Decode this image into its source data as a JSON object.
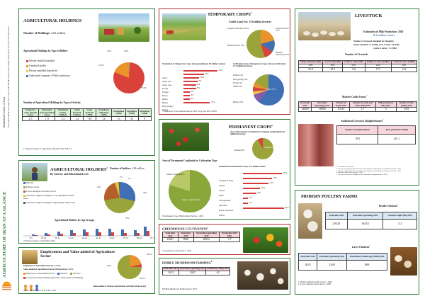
{
  "side": {
    "main_title": "AGRICULTURE OF IRAN AT A GLANCE",
    "org": "Statistical Centre of Iran",
    "note": "Iran's agricultural area ranks first in the whole Middle East and has a large share (about 10%) of Iran's land area"
  },
  "holdings": {
    "title": "AGRICULTURAL HOLDINGS",
    "number_label": "Number of Holdings:",
    "number_value": "4.02 million",
    "type_title": "Agricultural Holdings by Type of Holder",
    "legend": [
      "Private settled household",
      "Unsettled holder",
      "Private unsettled household",
      "Authorized company / Public institution"
    ],
    "pie_labels": [
      "0.2%",
      "0.4%",
      "23.5%",
      "75.9%"
    ],
    "activity_title": "Number of Agricultural Holdings by Type of Activity",
    "activity_headers": [
      "Temporary crops (annual crops)",
      "Permanent crops (perennial crops)",
      "Traditional poultry (million)",
      "Small livestock (million)",
      "Large livestock (1000)",
      "Greenhouse cultivation (1000)",
      "Pisciculture (1000)",
      "Apiculture (1000)",
      "Sericulture (1000)"
    ],
    "activity_values": [
      "2.5",
      "1.9",
      "1.2",
      "1.2",
      "710",
      "14",
      "13",
      "52",
      "9"
    ],
    "source": "1 National Census of Agriculture, 2014 (27 Sep.-8 Nov.)"
  },
  "holders": {
    "title": "AGRICULTURAL HOLDERS",
    "sup": "2",
    "subtitle": "By Literacy and Educational Level",
    "number_label": "Number of holders:",
    "number_value": "4.03 million",
    "legend": [
      "Illiterate",
      "Primary school",
      "Lower and upper secondary school",
      "Associate's degree and higher in non-agricultural related areas",
      "Associate's degree and higher in agricultural related areas"
    ],
    "pie_labels": [
      "5%",
      "1%",
      "34%",
      "35%",
      "25%"
    ],
    "age_title": "Agricultural Holders by Age Groups",
    "age_groups": [
      "<25",
      "25-29",
      "30-34",
      "35-39",
      "40-44",
      "45-49",
      "50-54",
      "55-59",
      "60-64",
      "65+"
    ],
    "source": "2 National census of agriculture 2014"
  },
  "employment": {
    "title": "Employment and Value added of Agriculture Sector",
    "emp_label": "Employees of Agricultural Sector: 17.4%",
    "value_label": "Value added of Agricultural Sector (fixed prices): 6.4%",
    "legend": [
      "Employees of Agricultural Sector",
      "Industry",
      "Services",
      "Livestock, Poultry Farming, Agriculture, Horticulture and Hunting"
    ],
    "pie_labels": [
      "23.0%",
      "6.4%",
      "70.6%"
    ],
    "bottom_note": "Value added of Various Agricultural Activities (fixed price)",
    "source": "3 ISIC classification: ILO 1999 - 2011"
  },
  "temporary": {
    "title": "TEMPORARY CROPS",
    "sup": "5",
    "arable_label": "Arable Land Use: 15.9 million hectares",
    "land_labels": [
      "Irrigated cultivation",
      "Irrigated fallow",
      "Rainfed fallow",
      "Rainfed cultivation"
    ],
    "land_values": [
      "29%",
      "12%",
      "14%",
      "45%"
    ],
    "prod_title": "Production of Temporary Crops (Crop production: 60 million tonnes)",
    "prod_items": [
      {
        "name": "wheat",
        "pct": "22%",
        "v": 22
      },
      {
        "name": "Sugar beet",
        "pct": "13%",
        "v": 13
      },
      {
        "name": "Sugar cane",
        "pct": "10%",
        "v": 10
      },
      {
        "name": "Forage",
        "pct": "9%",
        "v": 9
      },
      {
        "name": "Tomato",
        "pct": "8%",
        "v": 8
      },
      {
        "name": "Potato",
        "pct": "8%",
        "v": 8
      },
      {
        "name": "Onion",
        "pct": "4%",
        "v": 4
      },
      {
        "name": "Barley",
        "pct": "4%",
        "v": 4
      },
      {
        "name": "Rice (paddy)",
        "pct": "4%",
        "v": 4
      },
      {
        "name": "Others",
        "pct": "17%",
        "v": 17
      }
    ],
    "cult_title": "Cultivation Area of Temporary Crops (Area of cultivation: 11.4 million hectares)",
    "cult_labels": [
      "Barley 16%",
      "Wheat 57%",
      "Rice (paddy) 4%",
      "Forage 5%",
      "Alfalfa 6%",
      "Others 12%"
    ],
    "source": "5 Temporary Crops national survey 2016 (crop year 2017/2018)"
  },
  "permanent": {
    "title": "PERMANENT CROPS",
    "sup": "6",
    "area_title": "Area of Permanent Croplands by Irrigated and Rainfed (2.8 million hectares)",
    "area_labels": [
      "Rainfed 8%",
      "Irrigated 92%"
    ],
    "cult_title": "Area of Permanent Croplands by Cultivation Type",
    "cult_labels": [
      "Mixed cropping 30%",
      "single cropping 70%"
    ],
    "prod_title": "Production of Permanent Crops 12.9 million tonnes",
    "prod_items": [
      {
        "name": "Oranges & Tang.",
        "pct": "23%",
        "v": 23
      },
      {
        "name": "Apples",
        "pct": "17%",
        "v": 17
      },
      {
        "name": "Grapes",
        "pct": "15%",
        "v": 15
      },
      {
        "name": "Dates",
        "pct": "10%",
        "v": 10
      },
      {
        "name": "Pomegranates",
        "pct": "8%",
        "v": 8
      },
      {
        "name": "Pistachios",
        "pct": "3%",
        "v": 3
      },
      {
        "name": "Peach, Nectarine",
        "pct": "3%",
        "v": 3
      },
      {
        "name": "Others",
        "pct": "24%",
        "v": 24
      }
    ],
    "source": "6 Permanent Crops (Horticulture) Survey - 2019"
  },
  "greenhouse": {
    "title": "GREENHOUSE CULTIVATION",
    "sup": "7",
    "headers": [
      "Total units 2014",
      "Total units 2019",
      "Total units (operating) 2019",
      "Production 2019 (Mt)"
    ],
    "values": [
      "22447",
      "9836",
      "20032",
      "3.7"
    ],
    "source": "7 Greenhouse Census 2014 - 2019"
  },
  "mushroom": {
    "title": "EDIBLE MUSHROOM FARMING",
    "sup": "8",
    "headers": [
      "Total units 2017",
      "Total units (operating) 2017",
      "Production (1000t) 2017"
    ],
    "values": [
      "1613",
      "1045",
      "63"
    ],
    "source": "8 Edible Mushroom Farms Survey: 2017"
  },
  "livestock": {
    "title": "LIVESTOCK",
    "milk_label": "Estimation of Milk Production- 2020",
    "milk_value": "8.2 million tonnes",
    "slaughter_label": "Number of Livestock Supplied for Slaughter -",
    "slaughter_detail": "Sheep and lamb: 11.5 (Mh), Goat & kids: 3.6 (Mh)",
    "cattle_detail": "Cattle & calves : 1.1 (Mh)",
    "number_title": "Number of Livestock",
    "num_headers": [
      "Sheep and lambs (Mh)",
      "Goat & kids (Mh)",
      "Cattle & calves (Mh)",
      "Buffalo & calves (1000h)",
      "Camel & calves (1000h)"
    ],
    "num_years": [
      "2021",
      "2021",
      "2021",
      "2021",
      "2021"
    ],
    "num_values": [
      "53.9",
      "18.3",
      "5.6",
      "171",
      "152"
    ],
    "modern_title": "Modern Cattle Farms",
    "modern_sup": "4",
    "modern_headers": [
      "Total units 2019",
      "Total units (operating) 2019",
      "Number of heads 2019",
      "Number of cattle and calves (Mh) 2019",
      "Milk production (Mt) 2019",
      "Number of units (1000t) 2019"
    ],
    "modern_values": [
      "26983",
      "18836",
      "10147",
      "1.7",
      "5",
      "654"
    ],
    "auth_title": "Authorized Livestock Slaughterhouses",
    "auth_sup": "5",
    "auth_headers": [
      "Number of slaughterhouses",
      "Meat production (1000t)"
    ],
    "auth_values": [
      "393",
      "441.1"
    ],
    "sources": [
      "1. Livestock Survey 2021",
      "2. Survey for Quarterly Measurement of the Number and Production of Small Livestock - 2021",
      "3. Survey for Quarterly Measurement of the Number and Production of Large Livestock - 2021",
      "4. Modern Cattle Farms Survey - 2019",
      "5. Survey of Livestock Slaughter in the Authorized Slaughterhouses - 2019"
    ]
  },
  "poultry": {
    "title": "MODERN POULTRY FARMS",
    "broiler_title": "Broiler Chickens",
    "broiler_sup": "1",
    "broiler_headers": [
      "Total units 2020",
      "Total units (operating) 2020",
      "Chicken weight (Mt) 2020"
    ],
    "broiler_values": [
      "20520",
      "16452",
      "3.2"
    ],
    "layer_title": "Layer Chickens",
    "layer_sup": "2",
    "layer_headers": [
      "Total units 2020",
      "Total units (operating) 2020",
      "Production of edible eggs (1000t) 2020"
    ],
    "layer_values": [
      "1625",
      "1268",
      "869"
    ],
    "sources": [
      "1. Broiler chickens farms survey - 2020",
      "2. Layer chickens farms survey - 2020"
    ]
  },
  "colors": {
    "green_border": "#2f7d3a",
    "red_border": "#b03030",
    "bar_red": "#d83a3a",
    "pie_red": "#d9413b",
    "pie_blue": "#3f6fb5",
    "pie_olive": "#9aa43a",
    "pie_orange": "#e9932a"
  }
}
